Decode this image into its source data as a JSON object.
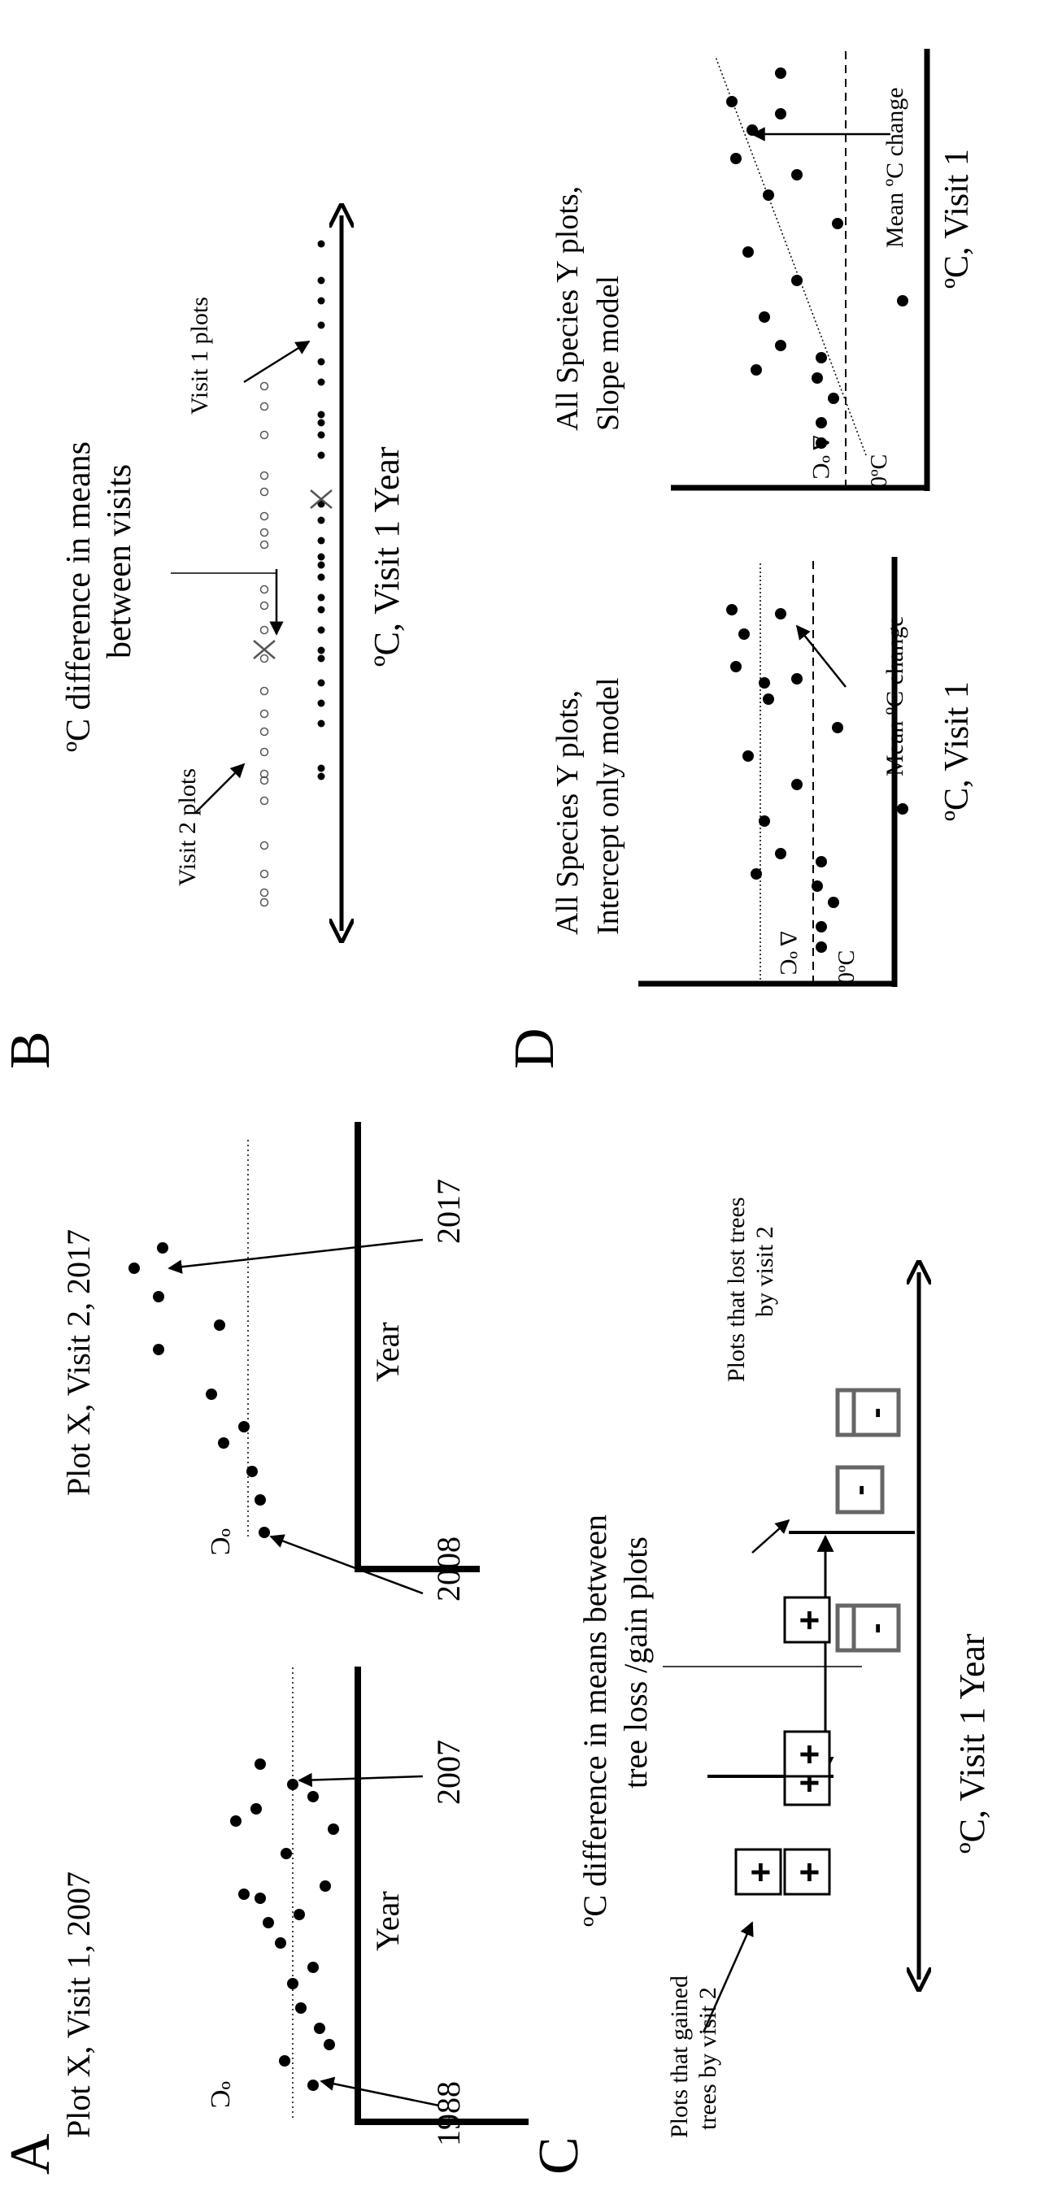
{
  "panels": {
    "A": {
      "letter": "A",
      "plot1": {
        "title": "Plot X, Visit 1, 2007",
        "ylabel": "ºC",
        "xlabel": "Year",
        "tick_start": "1988",
        "tick_end": "2007"
      },
      "plot2": {
        "title": "Plot X, Visit 2, 2017",
        "ylabel": "ºC",
        "xlabel": "Year",
        "tick_start": "2008",
        "tick_end": "2017"
      }
    },
    "B": {
      "letter": "B",
      "title_line1": "ºC difference in means",
      "title_line2": "between visits",
      "visit2_label": "Visit 2 plots",
      "visit1_label": "Visit 1 plots",
      "axis_label": "ºC, Visit 1 Year"
    },
    "C": {
      "letter": "C",
      "title_line1": "ºC difference in means between",
      "title_line2": "tree loss /gain plots",
      "gained_line1": "Plots that gained",
      "gained_line2": "trees by visit 2",
      "lost_line1": "Plots that lost trees",
      "lost_line2": "by visit 2",
      "axis_label": "ºC, Visit 1 Year",
      "plus_symbol": "+",
      "minus_symbol": "-",
      "lost_box_color": "#666666"
    },
    "D": {
      "letter": "D",
      "intercept": {
        "title_line1": "All Species Y plots,",
        "title_line2": "Intercept only model",
        "ylabel": "Δ ºC",
        "zero_label": "0ºC",
        "annotation": "Mean ºC change",
        "xlabel": "ºC, Visit 1"
      },
      "slope": {
        "title_line1": "All Species Y plots,",
        "title_line2": "Slope model",
        "ylabel": "Δ ºC",
        "zero_label": "0ºC",
        "annotation": "Mean ºC change",
        "xlabel": "ºC, Visit 1"
      }
    }
  }
}
